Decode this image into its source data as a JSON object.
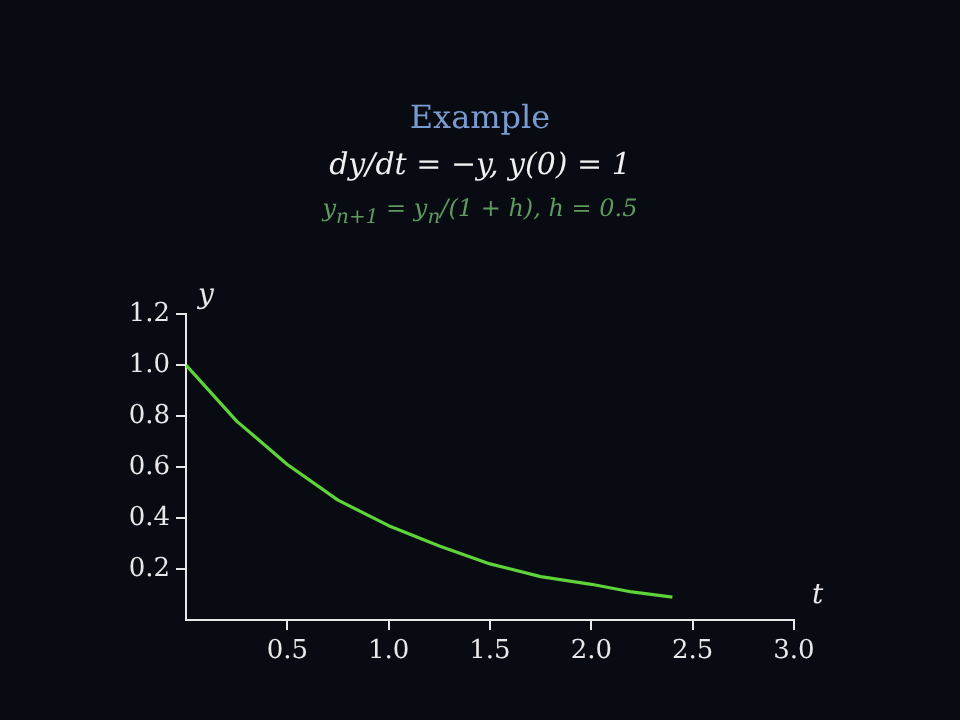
{
  "chart_data": {
    "type": "line",
    "title": "Example",
    "subtitle": "dy/dt = −y,   y(0) = 1",
    "annotations": [
      "y$_{n+1}$ = y$_{n}$/(1 + h),   h = 0.5"
    ],
    "xlabel": "t",
    "ylabel": "y",
    "series": [
      {
        "color": "#5fd33a",
        "x": [
          0,
          0.25,
          0.5,
          0.75,
          1,
          1.25,
          1.5,
          1.75,
          2,
          2.2,
          2.4
        ],
        "values": [
          1,
          0.78,
          0.61,
          0.47,
          0.37,
          0.29,
          0.22,
          0.17,
          0.14,
          0.11,
          0.09
        ]
      }
    ],
    "xlim": [
      0,
      3
    ],
    "xticks": [
      0.5,
      {
        "value": 1,
        "label": "1.0"
      },
      1.5,
      {
        "value": 2,
        "label": "2.0"
      },
      2.5,
      {
        "value": 3,
        "label": "3.0"
      }
    ],
    "ylim": [
      0,
      1.2
    ],
    "yticks": [
      0.2,
      0.4,
      0.6,
      0.8,
      {
        "value": 1,
        "label": "1.0"
      },
      1.2
    ],
    "grid": false,
    "legend": false,
    "marker": "none",
    "line_style": "solid"
  }
}
